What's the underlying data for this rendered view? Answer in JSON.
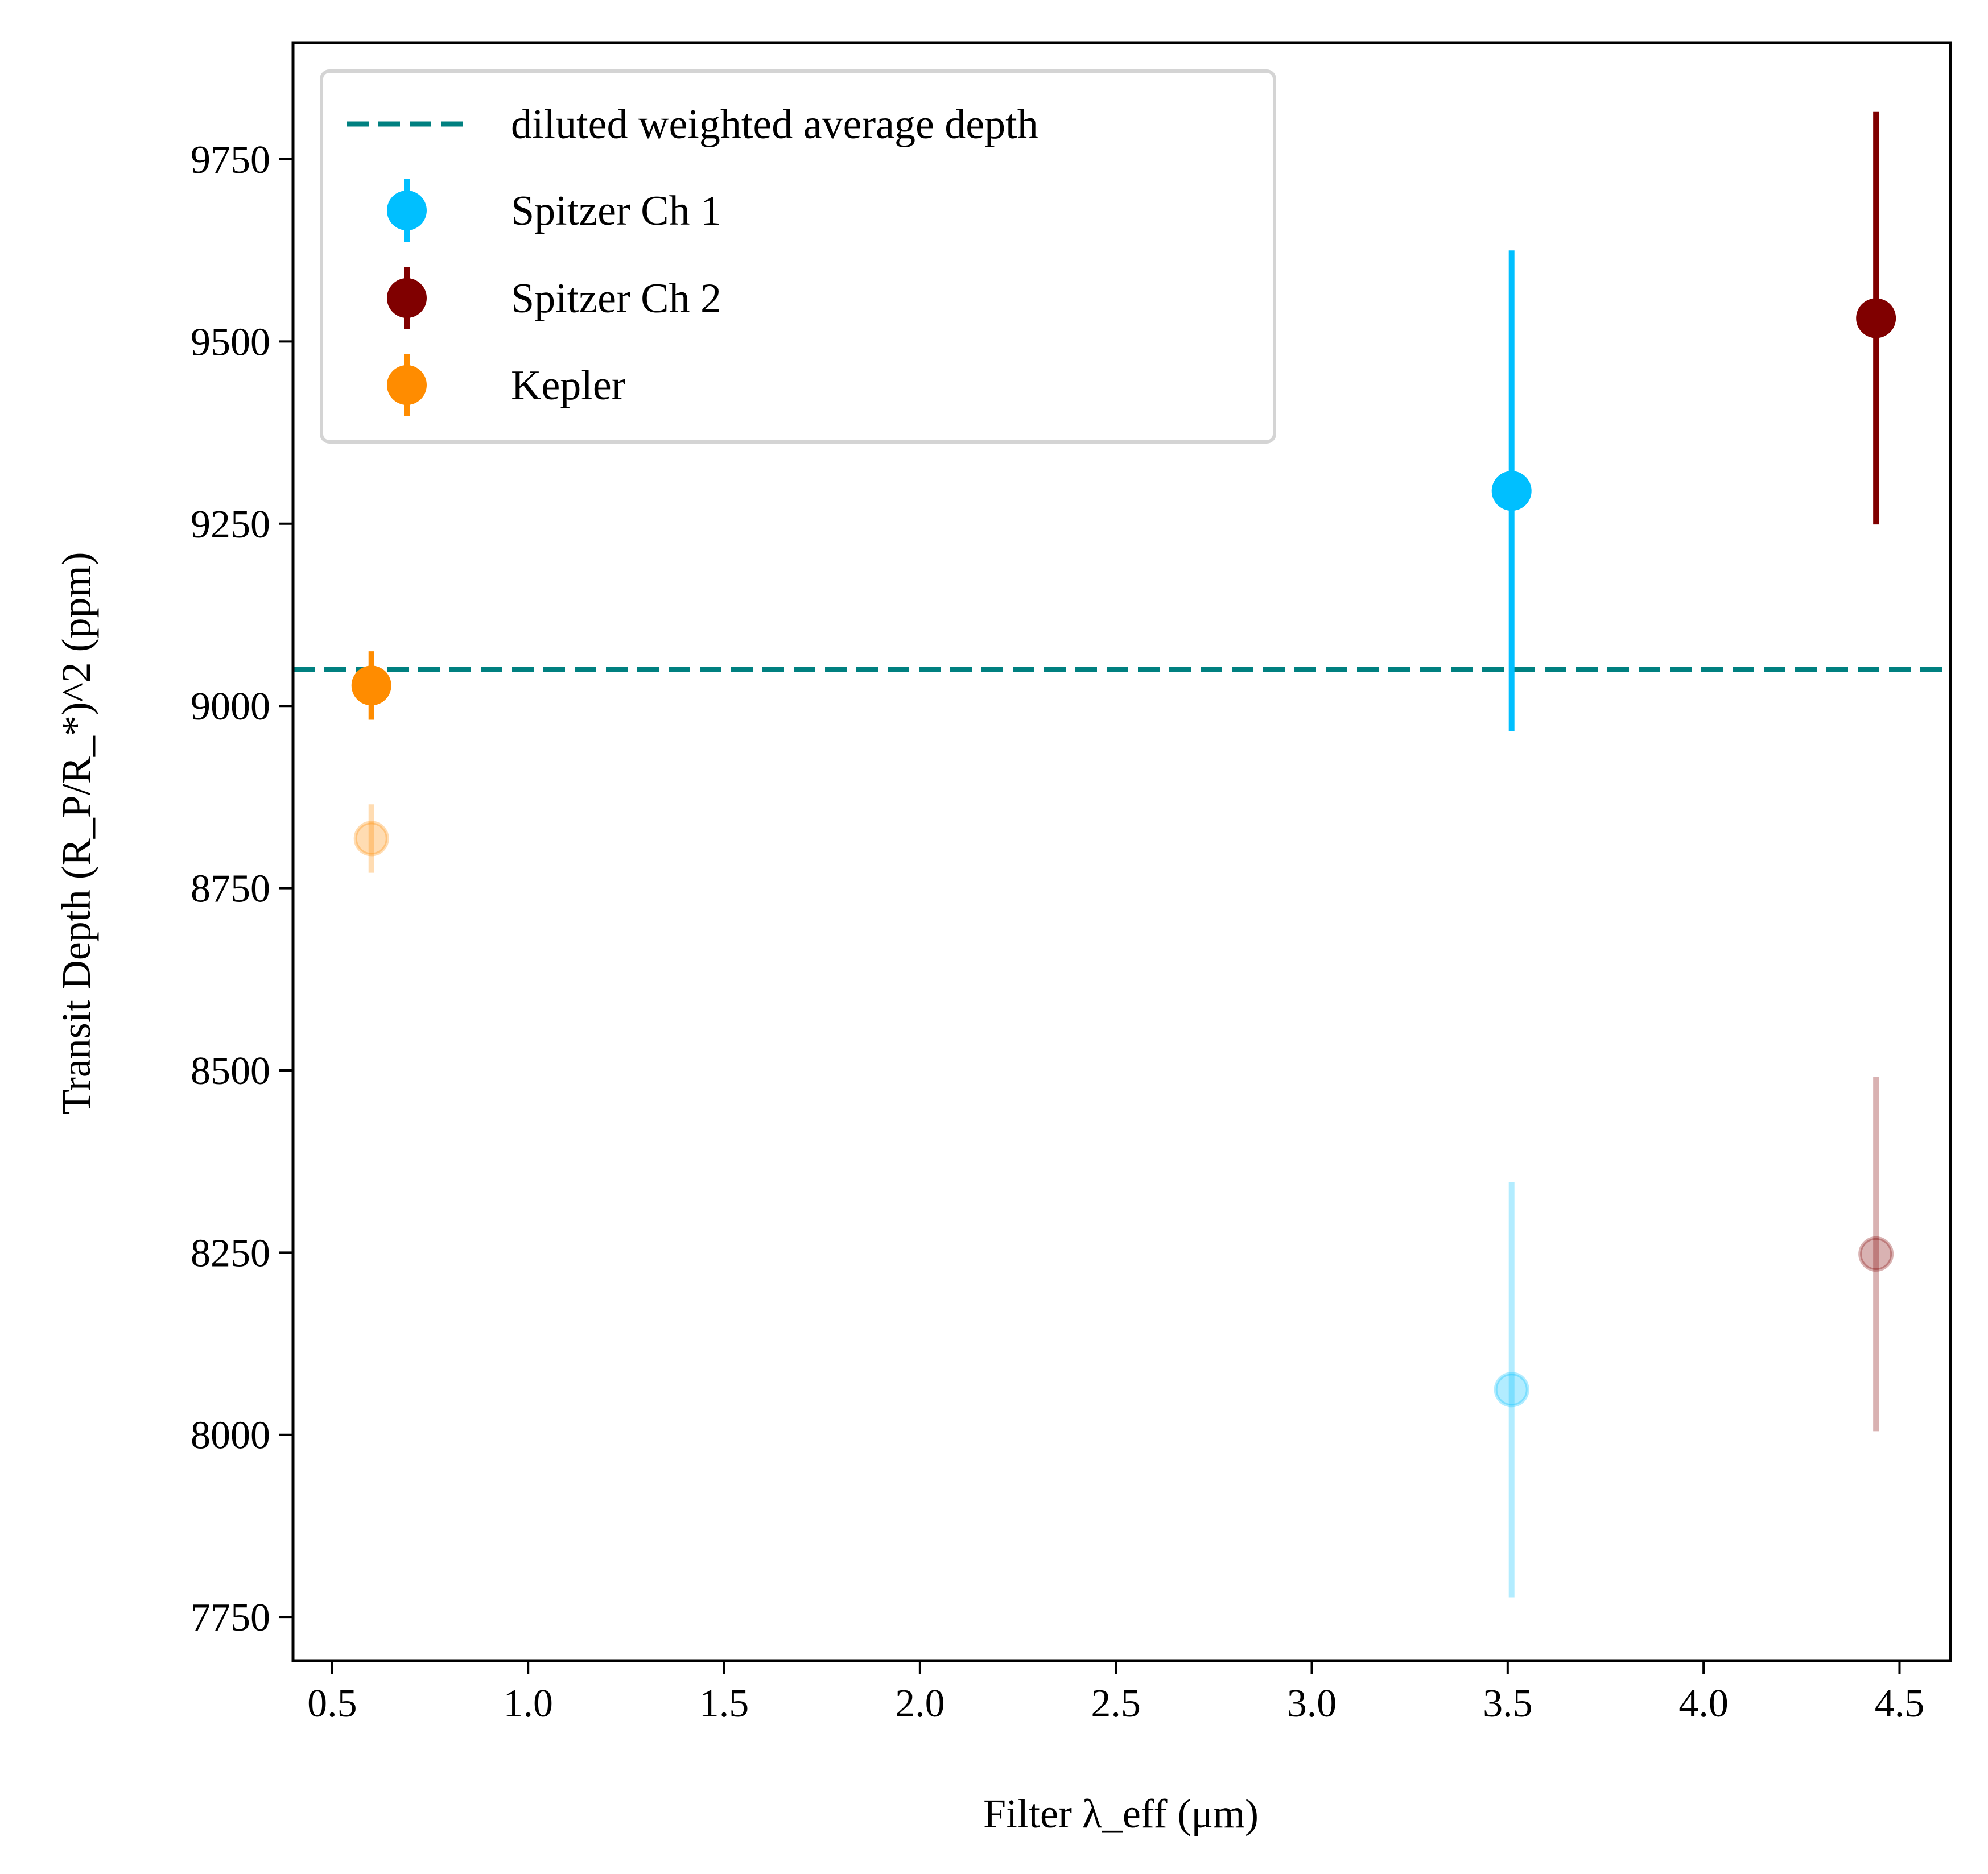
{
  "chart_data": {
    "type": "scatter",
    "xlabel": "Filter λ_eff (μm)",
    "ylabel": "Transit Depth (R_P/R_*)^2 (ppm)",
    "xlim": [
      0.4,
      4.63
    ],
    "ylim": [
      7690,
      9910
    ],
    "xticks": [
      0.5,
      1.0,
      1.5,
      2.0,
      2.5,
      3.0,
      3.5,
      4.0,
      4.5
    ],
    "xtick_labels": [
      "0.5",
      "1.0",
      "1.5",
      "2.0",
      "2.5",
      "3.0",
      "3.5",
      "4.0",
      "4.5"
    ],
    "yticks": [
      7750,
      8000,
      8250,
      8500,
      8750,
      9000,
      9250,
      9500,
      9750
    ],
    "ytick_labels": [
      "7750",
      "8000",
      "8250",
      "8500",
      "8750",
      "9000",
      "9250",
      "9500",
      "9750"
    ],
    "grid": false,
    "legend_position": "top-left",
    "reference_line": {
      "name": "diluted weighted average depth",
      "y": 9050,
      "style": "dashed",
      "color": "#008080"
    },
    "series": [
      {
        "name": "Spitzer Ch 1",
        "color": "#00BFFF",
        "x": [
          3.51
        ],
        "y": [
          9295
        ],
        "yerr": [
          330
        ],
        "faded": {
          "x": [
            3.51
          ],
          "y": [
            8062
          ],
          "yerr": [
            285
          ]
        }
      },
      {
        "name": "Spitzer Ch 2",
        "color": "#800000",
        "x": [
          4.44
        ],
        "y": [
          9532
        ],
        "yerr": [
          283
        ],
        "faded": {
          "x": [
            4.44
          ],
          "y": [
            8248
          ],
          "yerr": [
            243
          ]
        }
      },
      {
        "name": "Kepler",
        "color": "#FF8C00",
        "x": [
          0.6
        ],
        "y": [
          9028
        ],
        "yerr": [
          47
        ],
        "faded": {
          "x": [
            0.6
          ],
          "y": [
            8818
          ],
          "yerr": [
            47
          ]
        }
      }
    ]
  }
}
